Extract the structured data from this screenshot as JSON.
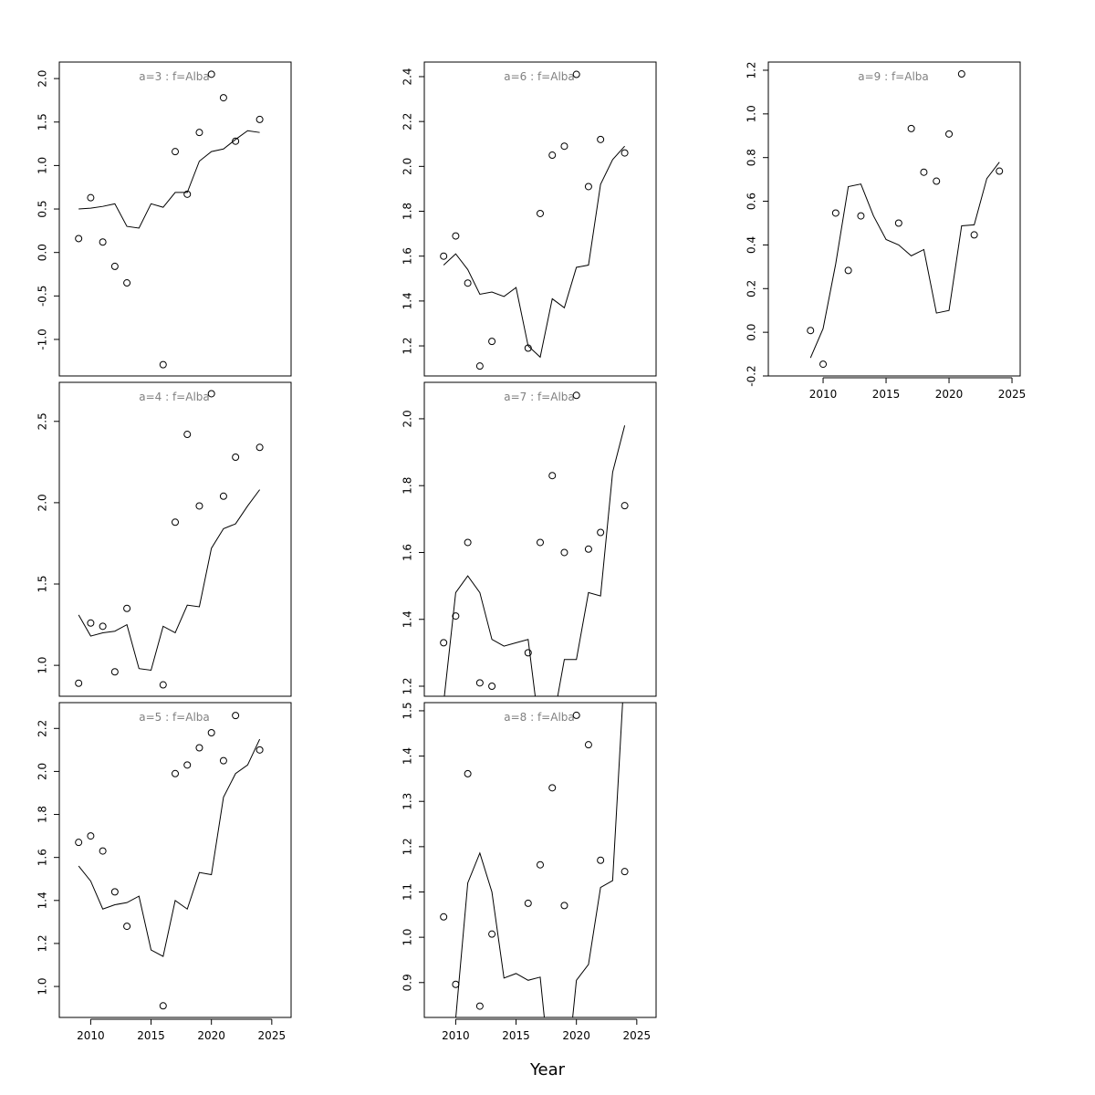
{
  "xlabel": "Year",
  "chart_data": [
    {
      "type": "scatter",
      "title": "a=3  :  f=Alba",
      "xlim": [
        2007.4,
        2026.6
      ],
      "ylim": [
        -1.42,
        2.19
      ],
      "yticks": [
        {
          "value": -1.0,
          "label": "-1.0"
        },
        -0.5,
        {
          "value": 0,
          "label": "0.0"
        },
        0.5,
        {
          "value": 1.0,
          "label": "1.0"
        },
        1.5,
        {
          "value": 2.0,
          "label": "2.0"
        }
      ],
      "color": "#000000",
      "series": [
        {
          "type": "points",
          "x": [
            2009,
            2010,
            2011,
            2012,
            2013,
            2016,
            2017,
            2018,
            2019,
            2020,
            2021,
            2022,
            2024
          ],
          "values": [
            0.16,
            0.63,
            0.12,
            -0.16,
            -0.35,
            -1.29,
            1.16,
            0.67,
            1.38,
            2.05,
            1.78,
            1.28,
            1.53
          ]
        },
        {
          "type": "line",
          "x": [
            2009,
            2010,
            2011,
            2012,
            2013,
            2014,
            2015,
            2016,
            2017,
            2018,
            2019,
            2020,
            2021,
            2022,
            2023,
            2024
          ],
          "values": [
            0.5,
            0.51,
            0.53,
            0.56,
            0.3,
            0.28,
            0.56,
            0.52,
            0.69,
            0.69,
            1.05,
            1.16,
            1.19,
            1.3,
            1.4,
            1.38
          ]
        }
      ]
    },
    {
      "type": "scatter",
      "title": "a=4  :  f=Alba",
      "xlim": [
        2007.4,
        2026.6
      ],
      "ylim": [
        0.81,
        2.74
      ],
      "yticks": [
        {
          "value": 1.0,
          "label": "1.0"
        },
        1.5,
        {
          "value": 2.0,
          "label": "2.0"
        },
        2.5
      ],
      "color": "#000000",
      "series": [
        {
          "type": "points",
          "x": [
            2009,
            2010,
            2011,
            2012,
            2013,
            2016,
            2017,
            2018,
            2019,
            2020,
            2021,
            2022,
            2024
          ],
          "values": [
            0.89,
            1.26,
            1.24,
            0.96,
            1.35,
            0.88,
            1.88,
            2.42,
            1.98,
            2.67,
            2.04,
            2.28,
            2.34
          ]
        },
        {
          "type": "line",
          "x": [
            2009,
            2010,
            2011,
            2012,
            2013,
            2014,
            2015,
            2016,
            2017,
            2018,
            2019,
            2020,
            2021,
            2022,
            2023,
            2024
          ],
          "values": [
            1.31,
            1.18,
            1.2,
            1.21,
            1.25,
            0.98,
            0.97,
            1.24,
            1.2,
            1.37,
            1.36,
            1.72,
            1.84,
            1.87,
            1.98,
            2.08
          ]
        }
      ]
    },
    {
      "type": "scatter",
      "title": "a=5  :  f=Alba",
      "xlim": [
        2007.4,
        2026.6
      ],
      "ylim": [
        0.856,
        2.32
      ],
      "xticks": [
        2010,
        2015,
        2020,
        2025
      ],
      "yticks": [
        {
          "value": 1.0,
          "label": "1.0"
        },
        1.2,
        1.4,
        1.6,
        1.8,
        {
          "value": 2.0,
          "label": "2.0"
        },
        2.2
      ],
      "color": "#000000",
      "series": [
        {
          "type": "points",
          "x": [
            2009,
            2010,
            2011,
            2012,
            2013,
            2016,
            2017,
            2018,
            2019,
            2020,
            2021,
            2022,
            2024
          ],
          "values": [
            1.67,
            1.7,
            1.63,
            1.44,
            1.28,
            0.91,
            1.99,
            2.03,
            2.11,
            2.18,
            2.05,
            2.26,
            2.1
          ]
        },
        {
          "type": "line",
          "x": [
            2009,
            2010,
            2011,
            2012,
            2013,
            2014,
            2015,
            2016,
            2017,
            2018,
            2019,
            2020,
            2021,
            2022,
            2023,
            2024
          ],
          "values": [
            1.56,
            1.49,
            1.36,
            1.38,
            1.39,
            1.42,
            1.17,
            1.14,
            1.4,
            1.36,
            1.53,
            1.52,
            1.88,
            1.99,
            2.03,
            2.15
          ]
        }
      ]
    },
    {
      "type": "scatter",
      "title": "a=6  :  f=Alba",
      "xlim": [
        2007.4,
        2026.6
      ],
      "ylim": [
        1.066,
        2.465
      ],
      "yticks": [
        1.2,
        1.4,
        1.6,
        1.8,
        {
          "value": 2.0,
          "label": "2.0"
        },
        2.2,
        2.4
      ],
      "color": "#000000",
      "series": [
        {
          "type": "points",
          "x": [
            2009,
            2010,
            2011,
            2012,
            2013,
            2016,
            2017,
            2018,
            2019,
            2020,
            2021,
            2022,
            2024
          ],
          "values": [
            1.6,
            1.69,
            1.48,
            1.11,
            1.22,
            1.19,
            1.79,
            2.05,
            2.09,
            2.41,
            1.91,
            2.12,
            2.06
          ]
        },
        {
          "type": "line",
          "x": [
            2009,
            2010,
            2011,
            2012,
            2013,
            2014,
            2015,
            2016,
            2017,
            2018,
            2019,
            2020,
            2021,
            2022,
            2023,
            2024
          ],
          "values": [
            1.56,
            1.61,
            1.54,
            1.43,
            1.44,
            1.42,
            1.46,
            1.2,
            1.15,
            1.41,
            1.37,
            1.55,
            1.56,
            1.92,
            2.03,
            2.09
          ]
        }
      ]
    },
    {
      "type": "scatter",
      "title": "a=7  :  f=Alba",
      "xlim": [
        2007.4,
        2026.6
      ],
      "ylim": [
        1.17,
        2.109
      ],
      "yticks": [
        1.2,
        1.4,
        1.6,
        1.8,
        {
          "value": 2.0,
          "label": "2.0"
        }
      ],
      "color": "#000000",
      "series": [
        {
          "type": "points",
          "x": [
            2009,
            2010,
            2011,
            2012,
            2013,
            2016,
            2017,
            2018,
            2019,
            2020,
            2021,
            2022,
            2024
          ],
          "values": [
            1.33,
            1.41,
            1.63,
            1.21,
            1.2,
            1.3,
            1.63,
            1.83,
            1.6,
            2.07,
            1.61,
            1.66,
            1.74
          ]
        },
        {
          "type": "line",
          "x": [
            2009,
            2010,
            2011,
            2012,
            2013,
            2014,
            2015,
            2016,
            2017,
            2018,
            2019,
            2020,
            2021,
            2022,
            2023,
            2024
          ],
          "values": [
            1.15,
            1.48,
            1.53,
            1.48,
            1.34,
            1.32,
            1.33,
            1.34,
            1.05,
            1.08,
            1.28,
            1.28,
            1.48,
            1.47,
            1.84,
            1.98
          ]
        }
      ]
    },
    {
      "type": "scatter",
      "title": "a=8  :  f=Alba",
      "xlim": [
        2007.4,
        2026.6
      ],
      "ylim": [
        0.823,
        1.518
      ],
      "xticks": [
        2010,
        2015,
        2020,
        2025
      ],
      "yticks": [
        0.9,
        {
          "value": 1.0,
          "label": "1.0"
        },
        1.1,
        1.2,
        1.3,
        1.4,
        1.5
      ],
      "color": "#000000",
      "series": [
        {
          "type": "points",
          "x": [
            2009,
            2010,
            2011,
            2012,
            2013,
            2016,
            2017,
            2018,
            2019,
            2020,
            2021,
            2022,
            2024
          ],
          "values": [
            1.045,
            0.896,
            1.361,
            0.848,
            1.007,
            1.075,
            1.16,
            1.33,
            1.07,
            1.49,
            1.425,
            1.17,
            1.145
          ]
        },
        {
          "type": "line",
          "x": [
            2009,
            2010,
            2011,
            2012,
            2013,
            2014,
            2015,
            2016,
            2017,
            2018,
            2019,
            2020,
            2021,
            2022,
            2023,
            2024
          ],
          "values": [
            0.6,
            0.82,
            1.12,
            1.186,
            1.1,
            0.91,
            0.92,
            0.905,
            0.912,
            0.65,
            0.64,
            0.905,
            0.94,
            1.11,
            1.125,
            1.6
          ]
        }
      ]
    },
    {
      "type": "scatter",
      "title": "a=9  :  f=Alba",
      "xlim": [
        2005.65,
        2025.65
      ],
      "ylim": [
        -0.2,
        1.2375
      ],
      "xticks": [
        2010,
        2015,
        2020,
        2025
      ],
      "yticks": [
        -0.2,
        {
          "value": 0,
          "label": "0.0"
        },
        0.2,
        0.4,
        0.6,
        0.8,
        {
          "value": 1.0,
          "label": "1.0"
        },
        1.2
      ],
      "color": "#000000",
      "series": [
        {
          "type": "points",
          "x": [
            2009,
            2010,
            2011,
            2012,
            2013,
            2016,
            2017,
            2018,
            2019,
            2020,
            2021,
            2022,
            2024
          ],
          "values": [
            0.008,
            -0.146,
            0.546,
            0.283,
            0.533,
            0.5,
            0.933,
            0.733,
            0.692,
            0.908,
            1.183,
            0.446,
            0.738
          ]
        },
        {
          "type": "line",
          "x": [
            2009,
            2010,
            2011,
            2012,
            2013,
            2014,
            2015,
            2016,
            2017,
            2018,
            2019,
            2020,
            2021,
            2022,
            2023,
            2024
          ],
          "values": [
            -0.117,
            0.017,
            0.313,
            0.667,
            0.679,
            0.533,
            0.425,
            0.4,
            0.35,
            0.379,
            0.088,
            0.1,
            0.4875,
            0.492,
            0.704,
            0.779
          ]
        }
      ]
    }
  ]
}
